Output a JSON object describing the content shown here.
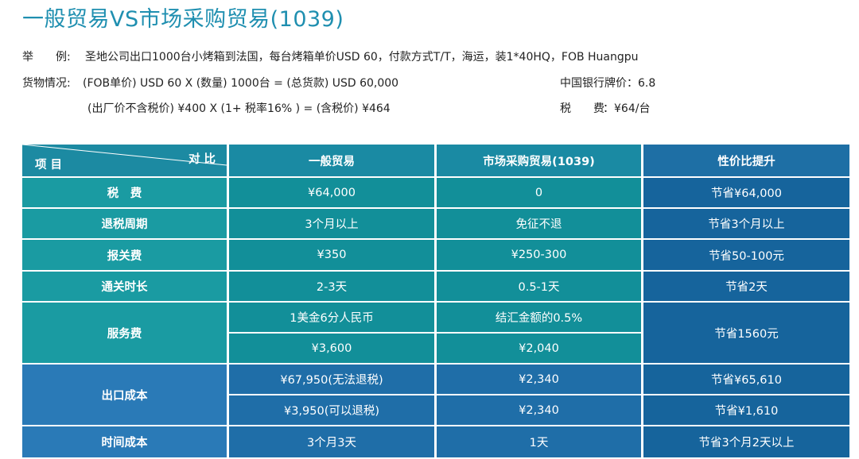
{
  "title": "一般贸易VS市场采购贸易(1039)",
  "example": {
    "label": "举　　例:",
    "text": "圣地公司出口1000台小烤箱到法国，每台烤箱单价USD 60，付款方式T/T，海运，装1*40HQ，FOB Huangpu"
  },
  "goods": {
    "label": "货物情况:",
    "line1": "(FOB单价) USD 60 X (数量) 1000台 = (总货款) USD 60,000",
    "line2": "(出厂价不含税价) ¥400 X (1+ 税率16% ) = (含税价) ¥464",
    "rate": "中国银行牌价：6.8",
    "tax_label": "税　　费",
    "tax_value": "：¥64/台"
  },
  "table": {
    "header": {
      "corner_top": "对 比",
      "corner_bottom": "项 目",
      "col1": "一般贸易",
      "col2": "市场采购贸易(1039)",
      "col3": "性价比提升"
    },
    "rows": {
      "tax": {
        "label": "税　费",
        "c1": "¥64,000",
        "c2": "0",
        "c3": "节省¥64,000"
      },
      "refund": {
        "label": "退税周期",
        "c1": "3个月以上",
        "c2": "免征不退",
        "c3": "节省3个月以上"
      },
      "customs": {
        "label": "报关费",
        "c1": "¥350",
        "c2": "¥250-300",
        "c3": "节省50-100元"
      },
      "clearance": {
        "label": "通关时长",
        "c1": "2-3天",
        "c2": "0.5-1天",
        "c3": "节省2天"
      },
      "service": {
        "label": "服务费",
        "c1a": "1美金6分人民币",
        "c2a": "结汇金额的0.5%",
        "c1b": "¥3,600",
        "c2b": "¥2,040",
        "c3": "节省1560元"
      },
      "export": {
        "label": "出口成本",
        "c1a": "¥67,950(无法退税)",
        "c2a": "¥2,340",
        "c3a": "节省¥65,610",
        "c1b": "¥3,950(可以退税)",
        "c2b": "¥2,340",
        "c3b": "节省¥1,610"
      },
      "time": {
        "label": "时间成本",
        "c1": "3个月3天",
        "c2": "1天",
        "c3": "节省3个月2天以上"
      }
    }
  }
}
